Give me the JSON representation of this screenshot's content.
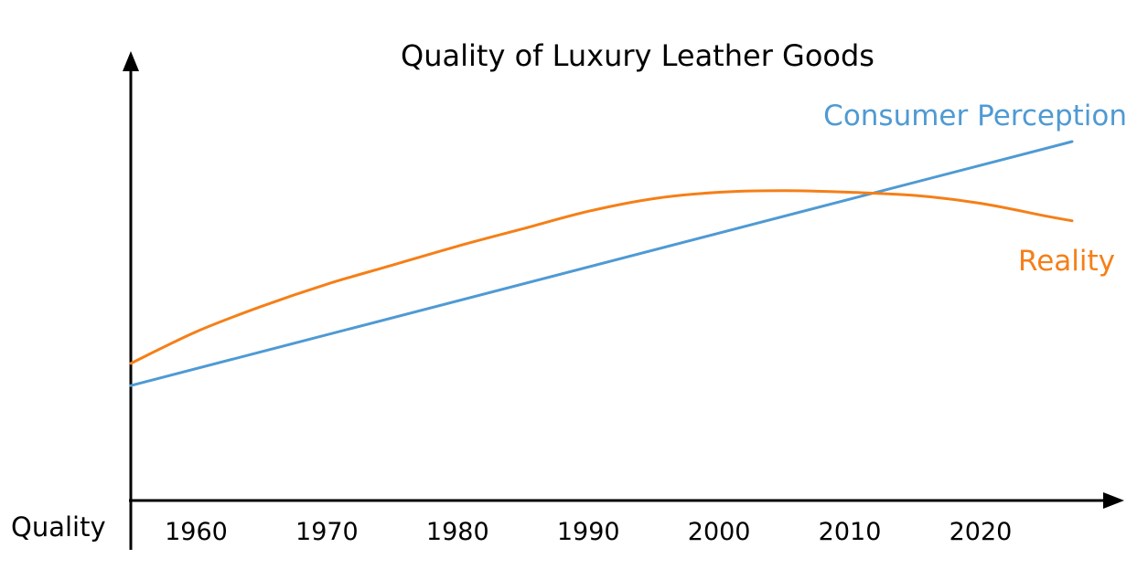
{
  "chart_data": {
    "type": "line",
    "title": "Quality of Luxury Leather Goods",
    "xlabel": "",
    "ylabel": "Quality",
    "x_ticks": [
      "1960",
      "1970",
      "1980",
      "1990",
      "2000",
      "2010",
      "2020"
    ],
    "tick_years": [
      1960,
      1970,
      1980,
      1990,
      2000,
      2010,
      2020
    ],
    "xlim": [
      1955,
      2027
    ],
    "ylim": [
      0,
      100
    ],
    "grid": false,
    "legend": "inline labels at line ends",
    "series": [
      {
        "name": "Consumer Perception",
        "color": "#4F9AD3",
        "x": [
          1955,
          2027
        ],
        "y": [
          23,
          100
        ]
      },
      {
        "name": "Reality",
        "color": "#F57F17",
        "x": [
          1955,
          1960,
          1965,
          1970,
          1975,
          1980,
          1985,
          1990,
          1995,
          2000,
          2005,
          2010,
          2015,
          2020,
          2025,
          2027
        ],
        "y": [
          30,
          40,
          48,
          55,
          61,
          67,
          72.5,
          78,
          82,
          84,
          84.5,
          84,
          83,
          80.5,
          76.5,
          75
        ]
      }
    ]
  }
}
